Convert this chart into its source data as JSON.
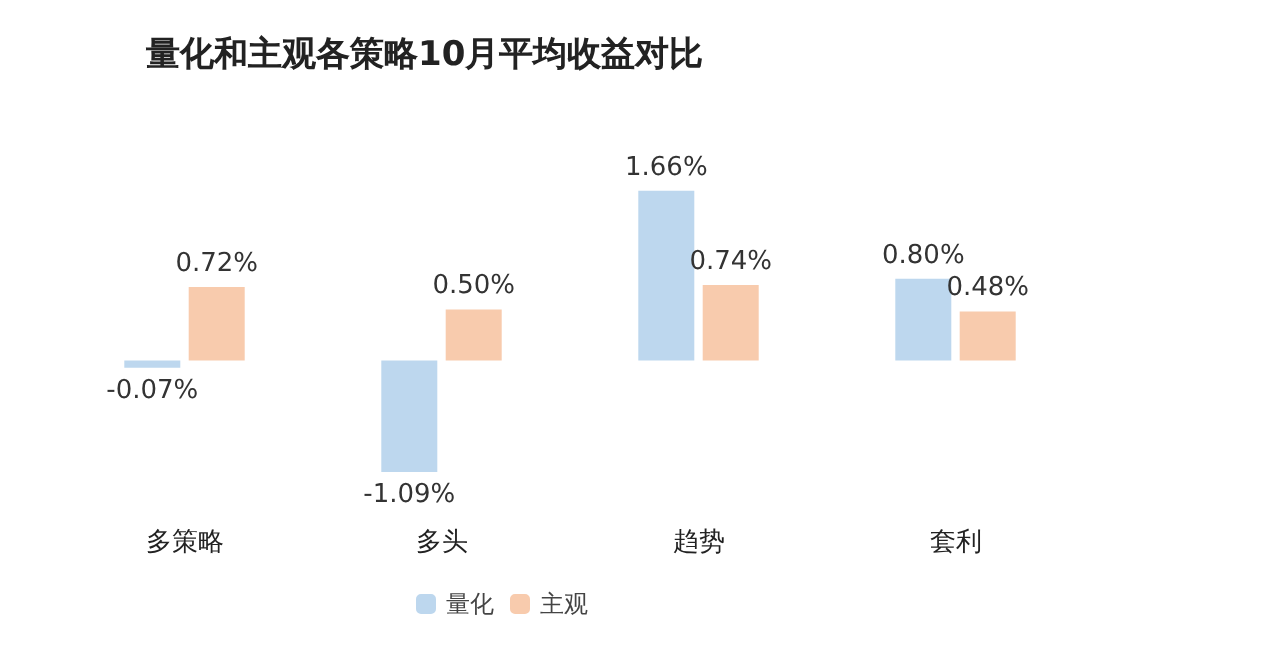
{
  "chart_data": {
    "type": "bar",
    "title": "量化和主观各策略10月平均收益对比",
    "categories": [
      "多策略",
      "多头",
      "趋势",
      "套利"
    ],
    "series": [
      {
        "name": "量化",
        "color": "#bdd7ee",
        "values": [
          -0.07,
          -1.09,
          1.66,
          0.8
        ],
        "value_labels": [
          "-0.07%",
          "-1.09%",
          "1.66%",
          "0.80%"
        ]
      },
      {
        "name": "主观",
        "color": "#f8cbad",
        "values": [
          0.72,
          0.5,
          0.74,
          0.48
        ],
        "value_labels": [
          "0.72%",
          "0.50%",
          "0.74%",
          "0.48%"
        ]
      }
    ],
    "legend": "bottom",
    "grid": false
  }
}
